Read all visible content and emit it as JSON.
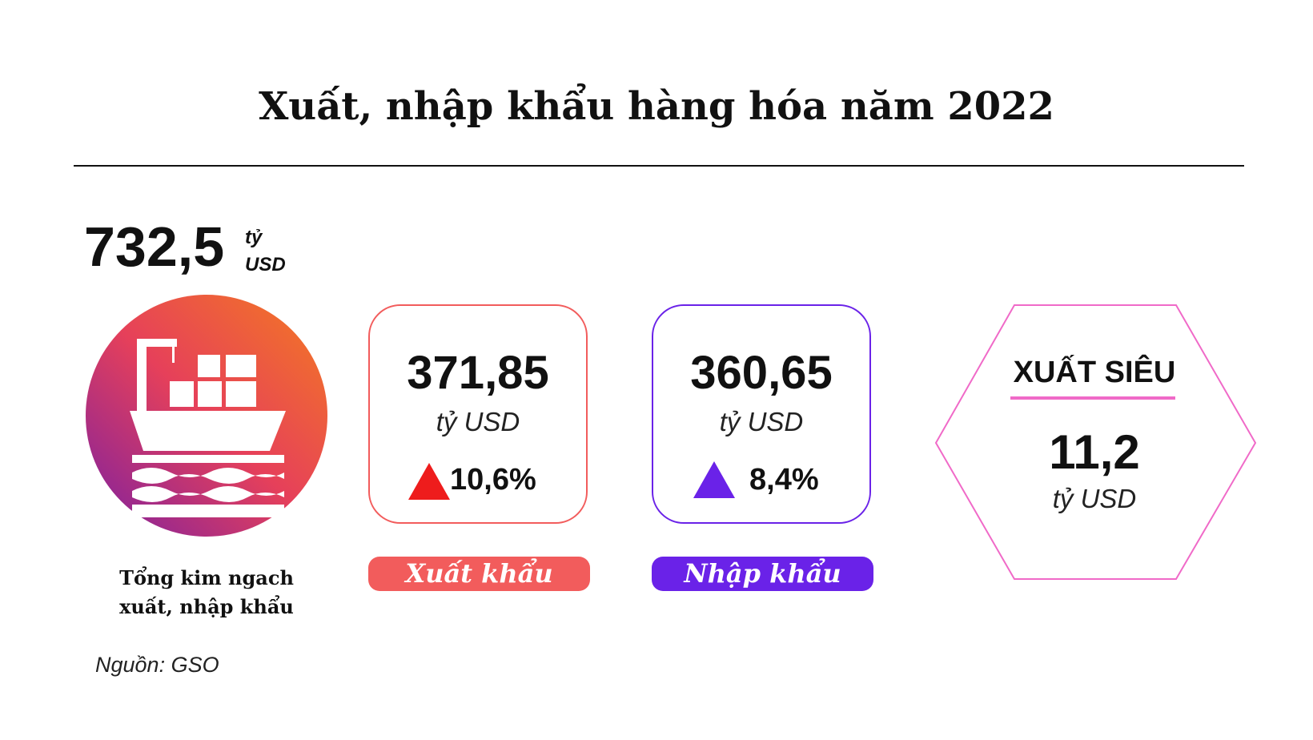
{
  "header": {
    "title": "Xuất, nhập khẩu hàng hóa năm 2022"
  },
  "total": {
    "value": "732,5",
    "unit": "tỷ USD",
    "caption": "Tổng kim ngach xuất, nhập khẩu"
  },
  "cards": [
    {
      "value": "371,85",
      "unit": "tỷ USD",
      "growth": "10,6%",
      "label": "Xuất khẩu"
    },
    {
      "value": "360,65",
      "unit": "tỷ USD",
      "growth": "8,4%",
      "label": "Nhập khẩu"
    }
  ],
  "surplus": {
    "title": "XUẤT SIÊU",
    "value": "11,2",
    "unit": "tỷ USD"
  },
  "source": "Nguồn: GSO"
}
